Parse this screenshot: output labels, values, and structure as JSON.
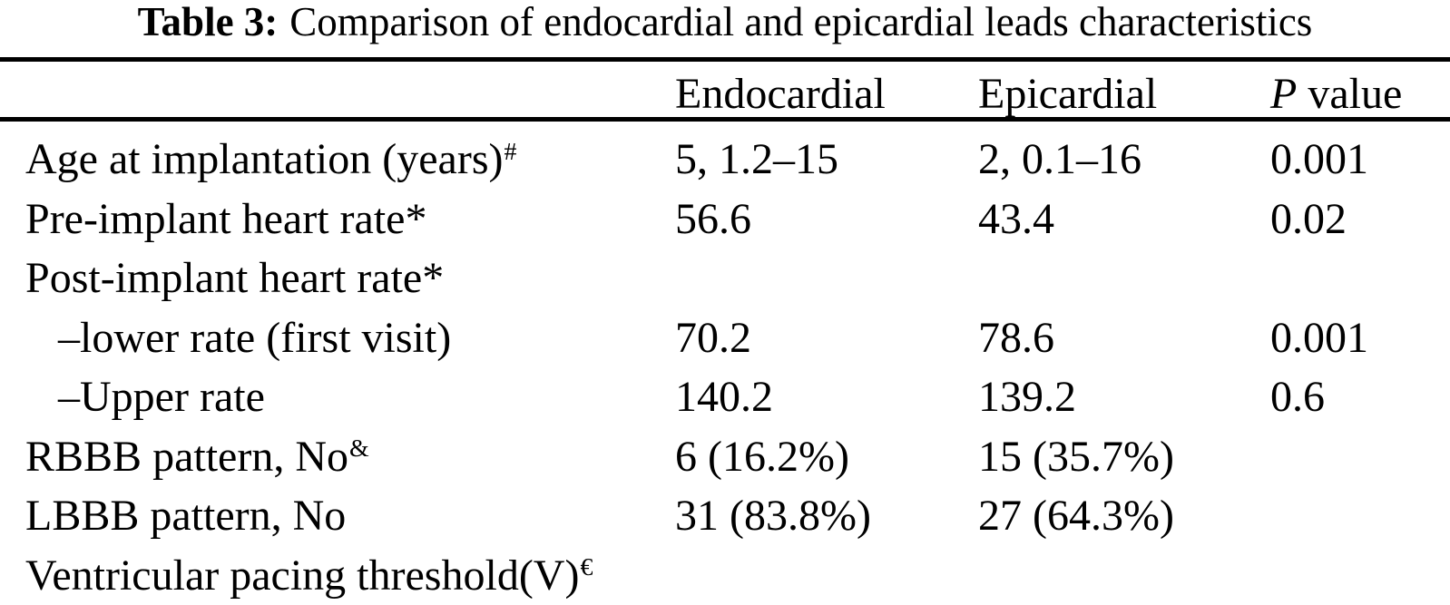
{
  "title": {
    "prefix": "Table 3:",
    "text": "Comparison of endocardial and epicardial leads characteristics"
  },
  "table": {
    "header": {
      "endocardial": "Endocardial",
      "epicardial": "Epicardial",
      "p_symbol": "P",
      "p_word": "value"
    },
    "rows": [
      {
        "label": "Age at implantation (years)",
        "sup": "#",
        "indent": false,
        "endocardial": "5, 1.2–15",
        "epicardial": "2, 0.1–16",
        "p_value": "0.001"
      },
      {
        "label": "Pre-implant heart rate*",
        "sup": "",
        "indent": false,
        "endocardial": "56.6",
        "epicardial": "43.4",
        "p_value": "0.02"
      },
      {
        "label": "Post-implant heart rate*",
        "sup": "",
        "indent": false,
        "endocardial": "",
        "epicardial": "",
        "p_value": ""
      },
      {
        "label": "–lower rate (first visit)",
        "sup": "",
        "indent": true,
        "endocardial": "70.2",
        "epicardial": "78.6",
        "p_value": "0.001"
      },
      {
        "label": "–Upper rate",
        "sup": "",
        "indent": true,
        "endocardial": "140.2",
        "epicardial": "139.2",
        "p_value": "0.6"
      },
      {
        "label": "RBBB pattern, No",
        "sup": "&",
        "indent": false,
        "endocardial": "6 (16.2%)",
        "epicardial": "15 (35.7%)",
        "p_value": ""
      },
      {
        "label": "LBBB pattern, No",
        "sup": "",
        "indent": false,
        "endocardial": "31 (83.8%)",
        "epicardial": "27 (64.3%)",
        "p_value": ""
      },
      {
        "label": "Ventricular pacing threshold(V)",
        "sup": "€",
        "indent": false,
        "endocardial": "",
        "epicardial": "",
        "p_value": ""
      }
    ]
  },
  "colors": {
    "text": "#000000",
    "background": "#ffffff",
    "rule": "#000000"
  }
}
